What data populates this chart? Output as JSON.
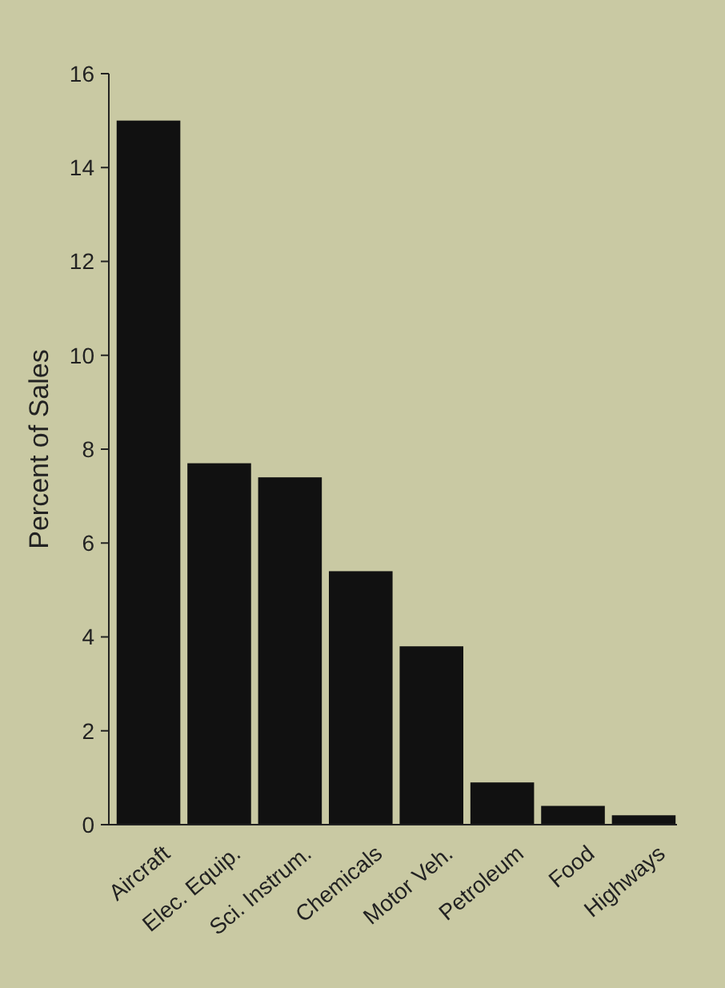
{
  "chart_data": {
    "type": "bar",
    "ylabel": "Percent of Sales",
    "categories": [
      "Aircraft",
      "Elec. Equip.",
      "Sci. Instrum.",
      "Chemicals",
      "Motor Veh.",
      "Petroleum",
      "Food",
      "Highways"
    ],
    "values": [
      15,
      7.7,
      7.4,
      5.4,
      3.8,
      0.9,
      0.4,
      0.2
    ],
    "color": "#111111",
    "ylim": [
      0,
      16
    ],
    "yticks": [
      0,
      2,
      4,
      6,
      8,
      10,
      12,
      14,
      16
    ],
    "grid": false
  }
}
